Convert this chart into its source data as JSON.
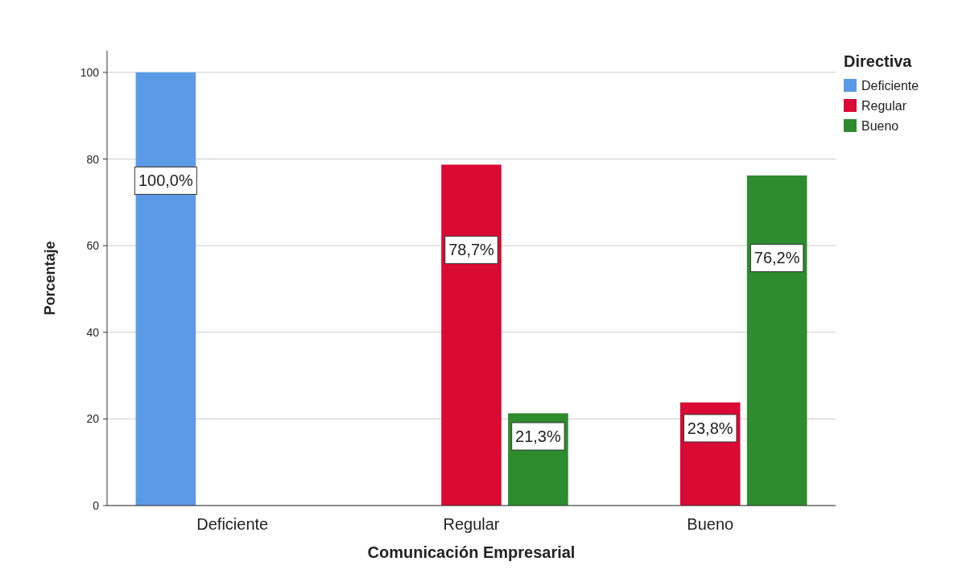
{
  "chart_data": {
    "type": "bar",
    "xlabel": "Comunicación Empresarial",
    "ylabel": "Porcentaje",
    "legend_title": "Directiva",
    "categories": [
      "Deficiente",
      "Regular",
      "Bueno"
    ],
    "series": [
      {
        "name": "Deficiente",
        "color": "#5b9be6",
        "values": [
          100,
          null,
          null
        ],
        "value_labels": [
          "100,0%",
          null,
          null
        ]
      },
      {
        "name": "Regular",
        "color": "#d90a33",
        "values": [
          null,
          78.7,
          23.8
        ],
        "value_labels": [
          null,
          "78,7%",
          "23,8%"
        ]
      },
      {
        "name": "Bueno",
        "color": "#2e8b2e",
        "values": [
          null,
          21.3,
          76.2
        ],
        "value_labels": [
          null,
          "21,3%",
          "76,2%"
        ]
      }
    ],
    "ylim": [
      0,
      105
    ],
    "yticks": [
      0,
      20,
      40,
      60,
      80,
      100
    ],
    "grid": "y",
    "legend": "top right"
  }
}
